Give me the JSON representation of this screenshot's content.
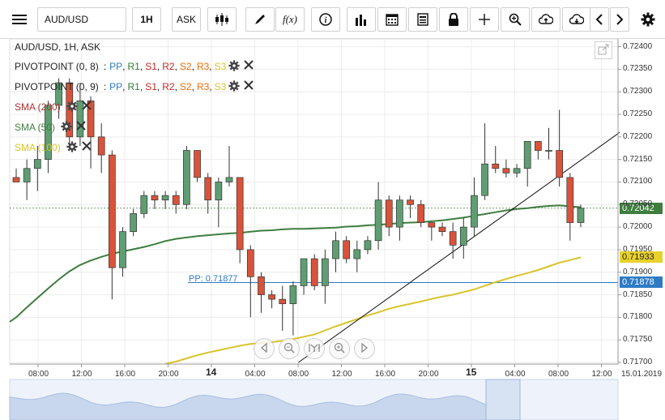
{
  "toolbar": {
    "symbol_value": "AUD/USD",
    "timeframe_label": "1H",
    "price_type_label": "ASK",
    "icons": [
      "menu-icon",
      "candlestick-icon",
      "pen-icon",
      "function-icon",
      "info-icon",
      "bar-chart-icon",
      "calendar-icon",
      "document-icon",
      "lock-icon",
      "crosshair-icon",
      "zoom-icon",
      "cloud-upload-icon",
      "cloud-download-icon",
      "chevron-left-icon",
      "chevron-right-icon",
      "gear-icon"
    ]
  },
  "chart": {
    "title": "AUD/USD, 1H, ASK",
    "legend": [
      {
        "name": "PIVOTPOINT (0, 8)",
        "parts": [
          "PP",
          "R1",
          "S1",
          "R2",
          "S2",
          "R3",
          "S3"
        ]
      },
      {
        "name": "PIVOTPOINT (0, 9)",
        "parts": [
          "PP",
          "R1",
          "S1",
          "R2",
          "S2",
          "R3",
          "S3"
        ]
      }
    ],
    "legend_sep": ":",
    "legend_part_sep": ",",
    "sma": [
      {
        "label": "SMA (200)",
        "color": "#b03030"
      },
      {
        "label": "SMA (50)",
        "color": "#3f7d3f"
      },
      {
        "label": "SMA (100)",
        "color": "#d8c42a"
      }
    ],
    "pivot_colors": {
      "PP": "#2e7bc4",
      "R1": "#2e7d32",
      "S1": "#c62828",
      "R2": "#c62828",
      "S2": "#ef6c00",
      "R3": "#ef6c00",
      "S3": "#d8c42a"
    },
    "pp_label": "PP: 0.71877",
    "price_tags": {
      "current": "0.72042",
      "sma100": "0.71933",
      "pp": "0.71878"
    },
    "y_ticks": [
      "0.72400",
      "0.72350",
      "0.72300",
      "0.72250",
      "0.72200",
      "0.72150",
      "0.72100",
      "0.72050",
      "0.72000",
      "0.71950",
      "0.71900",
      "0.71850",
      "0.71800",
      "0.71750",
      "0.71700"
    ],
    "x_ticks": [
      {
        "label": "08:00",
        "bold": false
      },
      {
        "label": "12:00",
        "bold": false
      },
      {
        "label": "16:00",
        "bold": false
      },
      {
        "label": "20:00",
        "bold": false
      },
      {
        "label": "14",
        "bold": true
      },
      {
        "label": "04:00",
        "bold": false
      },
      {
        "label": "08:00",
        "bold": false
      },
      {
        "label": "12:00",
        "bold": false
      },
      {
        "label": "16:00",
        "bold": false
      },
      {
        "label": "20:00",
        "bold": false
      },
      {
        "label": "15",
        "bold": true
      },
      {
        "label": "04:00",
        "bold": false
      },
      {
        "label": "08:00",
        "bold": false
      },
      {
        "label": "12:00",
        "bold": false
      }
    ],
    "date_corner": "15.01.2019",
    "colors": {
      "up": "#5e9e72",
      "down": "#d9533a",
      "sma50": "#3f7d3f",
      "sma100": "#d8c42a",
      "trend": "#111111",
      "pp_line": "#2e7bc4"
    }
  },
  "chart_data": {
    "type": "candlestick",
    "symbol": "AUD/USD",
    "interval": "1H",
    "ylim": [
      0.717,
      0.7241
    ],
    "candles": [
      {
        "o": 0.7211,
        "h": 0.7213,
        "l": 0.721,
        "c": 0.721
      },
      {
        "o": 0.721,
        "h": 0.7215,
        "l": 0.7206,
        "c": 0.7213
      },
      {
        "o": 0.7213,
        "h": 0.7218,
        "l": 0.7208,
        "c": 0.7215
      },
      {
        "o": 0.7215,
        "h": 0.7228,
        "l": 0.7212,
        "c": 0.7227
      },
      {
        "o": 0.7227,
        "h": 0.7233,
        "l": 0.7224,
        "c": 0.7232
      },
      {
        "o": 0.7232,
        "h": 0.7233,
        "l": 0.7218,
        "c": 0.722
      },
      {
        "o": 0.722,
        "h": 0.7232,
        "l": 0.7218,
        "c": 0.7228
      },
      {
        "o": 0.7228,
        "h": 0.7229,
        "l": 0.7213,
        "c": 0.722
      },
      {
        "o": 0.722,
        "h": 0.7223,
        "l": 0.7212,
        "c": 0.7216
      },
      {
        "o": 0.7216,
        "h": 0.7217,
        "l": 0.7184,
        "c": 0.7191
      },
      {
        "o": 0.7191,
        "h": 0.72,
        "l": 0.7189,
        "c": 0.7199
      },
      {
        "o": 0.7199,
        "h": 0.7204,
        "l": 0.7198,
        "c": 0.7203
      },
      {
        "o": 0.7203,
        "h": 0.7208,
        "l": 0.7202,
        "c": 0.7207
      },
      {
        "o": 0.7207,
        "h": 0.7208,
        "l": 0.7204,
        "c": 0.7206
      },
      {
        "o": 0.7206,
        "h": 0.7208,
        "l": 0.7204,
        "c": 0.7207
      },
      {
        "o": 0.7207,
        "h": 0.7208,
        "l": 0.7203,
        "c": 0.7205
      },
      {
        "o": 0.7205,
        "h": 0.7218,
        "l": 0.7204,
        "c": 0.7217
      },
      {
        "o": 0.7217,
        "h": 0.7217,
        "l": 0.721,
        "c": 0.7211
      },
      {
        "o": 0.7211,
        "h": 0.7212,
        "l": 0.7203,
        "c": 0.7206
      },
      {
        "o": 0.7206,
        "h": 0.7211,
        "l": 0.72,
        "c": 0.721
      },
      {
        "o": 0.721,
        "h": 0.7218,
        "l": 0.7209,
        "c": 0.7211
      },
      {
        "o": 0.7211,
        "h": 0.7211,
        "l": 0.7192,
        "c": 0.7195
      },
      {
        "o": 0.7195,
        "h": 0.7196,
        "l": 0.718,
        "c": 0.7189
      },
      {
        "o": 0.7189,
        "h": 0.719,
        "l": 0.7181,
        "c": 0.7185
      },
      {
        "o": 0.7185,
        "h": 0.7186,
        "l": 0.7182,
        "c": 0.7184
      },
      {
        "o": 0.7184,
        "h": 0.7187,
        "l": 0.7177,
        "c": 0.7183
      },
      {
        "o": 0.7183,
        "h": 0.7188,
        "l": 0.7176,
        "c": 0.7187
      },
      {
        "o": 0.7187,
        "h": 0.7193,
        "l": 0.7185,
        "c": 0.7193
      },
      {
        "o": 0.7193,
        "h": 0.7194,
        "l": 0.7186,
        "c": 0.7187
      },
      {
        "o": 0.7187,
        "h": 0.7195,
        "l": 0.7183,
        "c": 0.7193
      },
      {
        "o": 0.7193,
        "h": 0.7199,
        "l": 0.719,
        "c": 0.7197
      },
      {
        "o": 0.7197,
        "h": 0.7198,
        "l": 0.7192,
        "c": 0.7193
      },
      {
        "o": 0.7193,
        "h": 0.7197,
        "l": 0.719,
        "c": 0.7195
      },
      {
        "o": 0.7195,
        "h": 0.7198,
        "l": 0.7194,
        "c": 0.7197
      },
      {
        "o": 0.7197,
        "h": 0.721,
        "l": 0.7195,
        "c": 0.7206
      },
      {
        "o": 0.7206,
        "h": 0.7207,
        "l": 0.7198,
        "c": 0.72
      },
      {
        "o": 0.72,
        "h": 0.7207,
        "l": 0.7197,
        "c": 0.7206
      },
      {
        "o": 0.7206,
        "h": 0.7207,
        "l": 0.7202,
        "c": 0.7205
      },
      {
        "o": 0.7205,
        "h": 0.7206,
        "l": 0.72,
        "c": 0.7201
      },
      {
        "o": 0.7201,
        "h": 0.7201,
        "l": 0.7197,
        "c": 0.72
      },
      {
        "o": 0.72,
        "h": 0.7201,
        "l": 0.7198,
        "c": 0.7199
      },
      {
        "o": 0.7199,
        "h": 0.7201,
        "l": 0.7193,
        "c": 0.7196
      },
      {
        "o": 0.7196,
        "h": 0.7202,
        "l": 0.7193,
        "c": 0.72
      },
      {
        "o": 0.72,
        "h": 0.7211,
        "l": 0.7198,
        "c": 0.7207
      },
      {
        "o": 0.7207,
        "h": 0.7223,
        "l": 0.7206,
        "c": 0.7214
      },
      {
        "o": 0.7214,
        "h": 0.7218,
        "l": 0.7212,
        "c": 0.7213
      },
      {
        "o": 0.7213,
        "h": 0.7215,
        "l": 0.7211,
        "c": 0.7212
      },
      {
        "o": 0.7212,
        "h": 0.7214,
        "l": 0.7211,
        "c": 0.7213
      },
      {
        "o": 0.7213,
        "h": 0.7219,
        "l": 0.7209,
        "c": 0.7219
      },
      {
        "o": 0.7219,
        "h": 0.7219,
        "l": 0.7215,
        "c": 0.7217
      },
      {
        "o": 0.7217,
        "h": 0.7222,
        "l": 0.7215,
        "c": 0.7217
      },
      {
        "o": 0.7217,
        "h": 0.7226,
        "l": 0.7209,
        "c": 0.7211
      },
      {
        "o": 0.7211,
        "h": 0.7212,
        "l": 0.7197,
        "c": 0.7201
      },
      {
        "o": 0.7201,
        "h": 0.7205,
        "l": 0.72,
        "c": 0.72042
      }
    ],
    "sma50": [
      0.718,
      0.71822,
      0.71843,
      0.71864,
      0.71884,
      0.71902,
      0.71916,
      0.71926,
      0.71934,
      0.71941,
      0.71946,
      0.71951,
      0.71956,
      0.71962,
      0.71969,
      0.71974,
      0.71977,
      0.7198,
      0.71982,
      0.71984,
      0.71986,
      0.71987,
      0.7199,
      0.71992,
      0.71993,
      0.71995,
      0.71996,
      0.71996,
      0.71997,
      0.71998,
      0.71999,
      0.72001,
      0.72002,
      0.72004,
      0.72005,
      0.72007,
      0.72009,
      0.7201,
      0.72011,
      0.72013,
      0.72015,
      0.72018,
      0.72021,
      0.72025,
      0.72029,
      0.72033,
      0.72037,
      0.7204,
      0.72042,
      0.72045,
      0.72047,
      0.72048,
      0.72046,
      0.72044
    ],
    "sma100": [
      null,
      null,
      null,
      null,
      null,
      null,
      null,
      null,
      null,
      null,
      null,
      null,
      null,
      null,
      0.71697,
      0.71702,
      0.71709,
      0.71716,
      0.71722,
      0.71727,
      0.71732,
      0.71737,
      0.71741,
      0.71743,
      0.71745,
      0.71748,
      0.71752,
      0.71757,
      0.71762,
      0.71771,
      0.7178,
      0.71788,
      0.71796,
      0.71804,
      0.71811,
      0.71819,
      0.71825,
      0.7183,
      0.71835,
      0.71841,
      0.71846,
      0.7185,
      0.71856,
      0.71862,
      0.7187,
      0.71878,
      0.71885,
      0.71892,
      0.71898,
      0.71905,
      0.71913,
      0.71921,
      0.71927,
      0.71933
    ],
    "trendline": [
      {
        "i": 26.5,
        "p": 0.717
      },
      {
        "i": 57.8,
        "p": 0.7221
      }
    ],
    "pivot_pp": 0.71877
  }
}
